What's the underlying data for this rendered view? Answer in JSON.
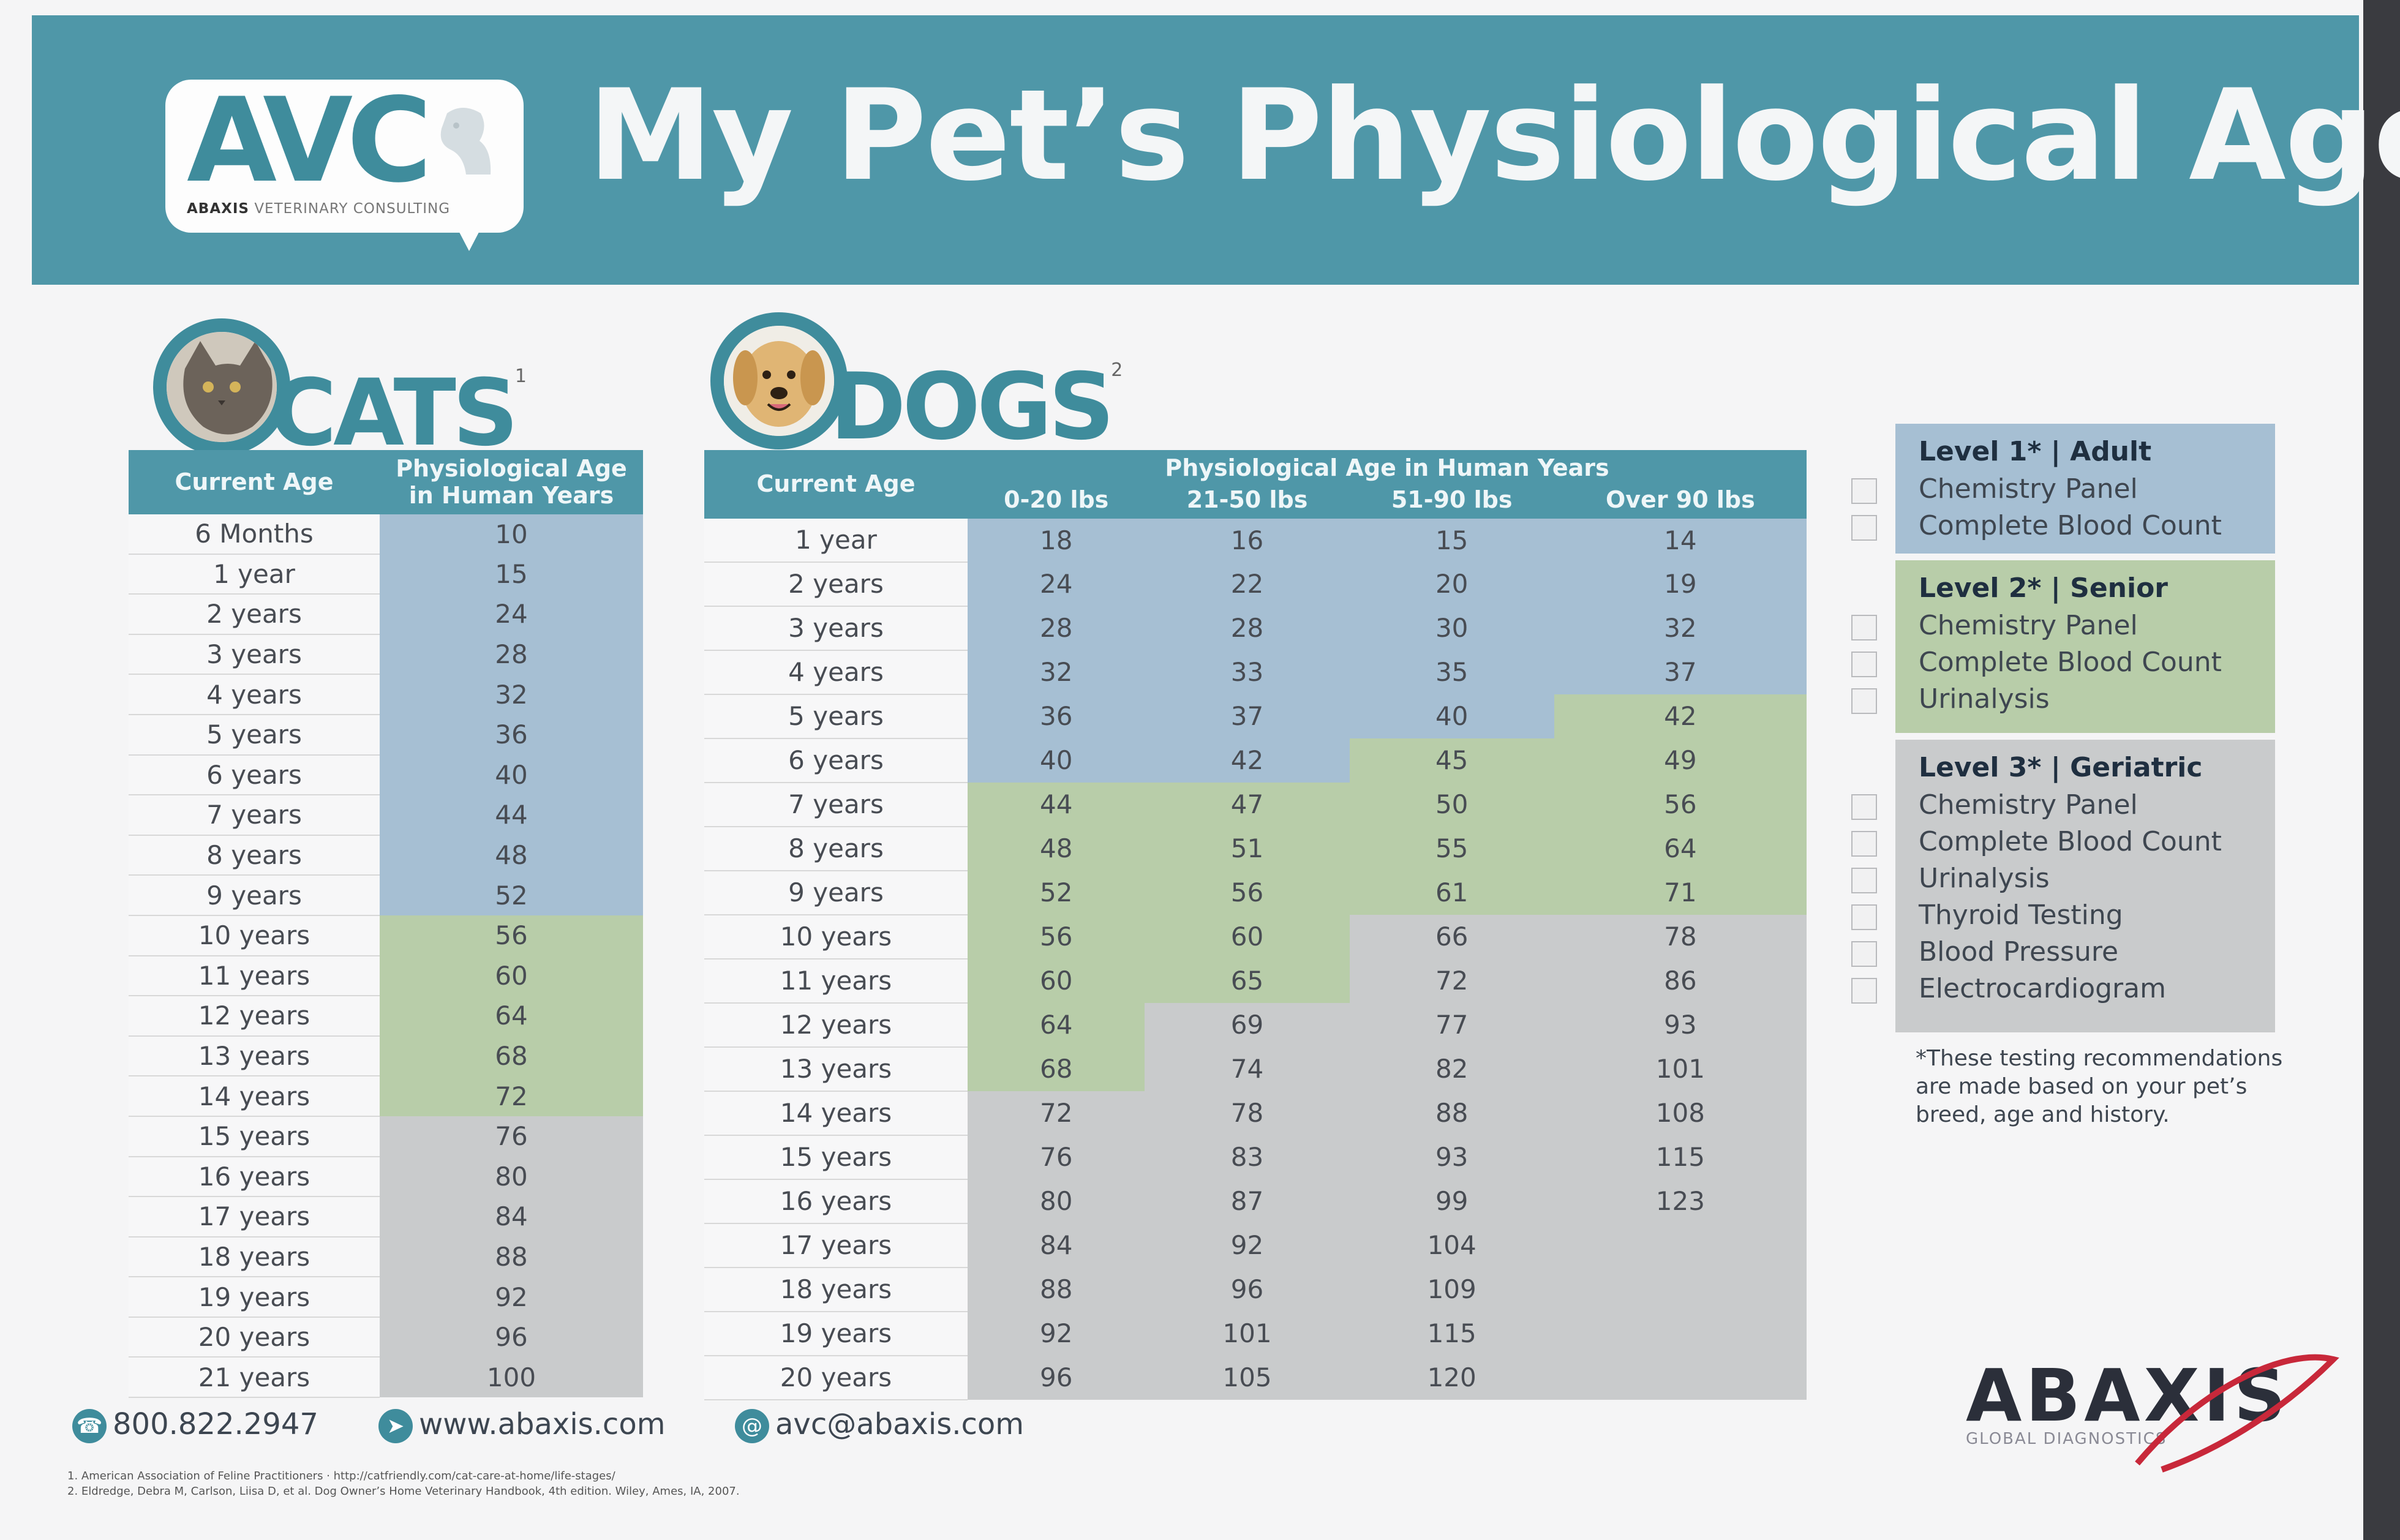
{
  "header": {
    "logo": "AVC",
    "logo_subtitle_brand": "ABAXIS",
    "logo_subtitle": "VETERINARY CONSULTING",
    "title": "My Pet’s Physiological Age"
  },
  "cats": {
    "heading": "CATS",
    "footnote_mark": "1",
    "col_age": "Current Age",
    "col_phys_line1": "Physiological Age",
    "col_phys_line2": "in Human Years",
    "rows": [
      {
        "age": "6 Months",
        "value": "10",
        "band": "blue"
      },
      {
        "age": "1 year",
        "value": "15",
        "band": "blue"
      },
      {
        "age": "2 years",
        "value": "24",
        "band": "blue"
      },
      {
        "age": "3 years",
        "value": "28",
        "band": "blue"
      },
      {
        "age": "4 years",
        "value": "32",
        "band": "blue"
      },
      {
        "age": "5 years",
        "value": "36",
        "band": "blue"
      },
      {
        "age": "6 years",
        "value": "40",
        "band": "blue"
      },
      {
        "age": "7 years",
        "value": "44",
        "band": "blue"
      },
      {
        "age": "8 years",
        "value": "48",
        "band": "blue"
      },
      {
        "age": "9 years",
        "value": "52",
        "band": "blue"
      },
      {
        "age": "10 years",
        "value": "56",
        "band": "green"
      },
      {
        "age": "11 years",
        "value": "60",
        "band": "green"
      },
      {
        "age": "12 years",
        "value": "64",
        "band": "green"
      },
      {
        "age": "13 years",
        "value": "68",
        "band": "green"
      },
      {
        "age": "14 years",
        "value": "72",
        "band": "green"
      },
      {
        "age": "15 years",
        "value": "76",
        "band": "gray"
      },
      {
        "age": "16 years",
        "value": "80",
        "band": "gray"
      },
      {
        "age": "17 years",
        "value": "84",
        "band": "gray"
      },
      {
        "age": "18 years",
        "value": "88",
        "band": "gray"
      },
      {
        "age": "19 years",
        "value": "92",
        "band": "gray"
      },
      {
        "age": "20 years",
        "value": "96",
        "band": "gray"
      },
      {
        "age": "21 years",
        "value": "100",
        "band": "gray"
      }
    ]
  },
  "dogs": {
    "heading": "DOGS",
    "footnote_mark": "2",
    "col_age": "Current Age",
    "group_header": "Physiological Age in Human Years",
    "weights": [
      "0-20 lbs",
      "21-50 lbs",
      "51-90 lbs",
      "Over 90 lbs"
    ],
    "rows": [
      {
        "age": "1 year",
        "v": [
          "18",
          "16",
          "15",
          "14"
        ],
        "b": [
          "blue",
          "blue",
          "blue",
          "blue"
        ]
      },
      {
        "age": "2 years",
        "v": [
          "24",
          "22",
          "20",
          "19"
        ],
        "b": [
          "blue",
          "blue",
          "blue",
          "blue"
        ]
      },
      {
        "age": "3 years",
        "v": [
          "28",
          "28",
          "30",
          "32"
        ],
        "b": [
          "blue",
          "blue",
          "blue",
          "blue"
        ]
      },
      {
        "age": "4 years",
        "v": [
          "32",
          "33",
          "35",
          "37"
        ],
        "b": [
          "blue",
          "blue",
          "blue",
          "blue"
        ]
      },
      {
        "age": "5 years",
        "v": [
          "36",
          "37",
          "40",
          "42"
        ],
        "b": [
          "blue",
          "blue",
          "blue",
          "green"
        ]
      },
      {
        "age": "6 years",
        "v": [
          "40",
          "42",
          "45",
          "49"
        ],
        "b": [
          "blue",
          "blue",
          "green",
          "green"
        ]
      },
      {
        "age": "7 years",
        "v": [
          "44",
          "47",
          "50",
          "56"
        ],
        "b": [
          "green",
          "green",
          "green",
          "green"
        ]
      },
      {
        "age": "8 years",
        "v": [
          "48",
          "51",
          "55",
          "64"
        ],
        "b": [
          "green",
          "green",
          "green",
          "green"
        ]
      },
      {
        "age": "9 years",
        "v": [
          "52",
          "56",
          "61",
          "71"
        ],
        "b": [
          "green",
          "green",
          "green",
          "green"
        ]
      },
      {
        "age": "10 years",
        "v": [
          "56",
          "60",
          "66",
          "78"
        ],
        "b": [
          "green",
          "green",
          "gray",
          "gray"
        ]
      },
      {
        "age": "11 years",
        "v": [
          "60",
          "65",
          "72",
          "86"
        ],
        "b": [
          "green",
          "green",
          "gray",
          "gray"
        ]
      },
      {
        "age": "12 years",
        "v": [
          "64",
          "69",
          "77",
          "93"
        ],
        "b": [
          "green",
          "gray",
          "gray",
          "gray"
        ]
      },
      {
        "age": "13 years",
        "v": [
          "68",
          "74",
          "82",
          "101"
        ],
        "b": [
          "green",
          "gray",
          "gray",
          "gray"
        ]
      },
      {
        "age": "14 years",
        "v": [
          "72",
          "78",
          "88",
          "108"
        ],
        "b": [
          "gray",
          "gray",
          "gray",
          "gray"
        ]
      },
      {
        "age": "15 years",
        "v": [
          "76",
          "83",
          "93",
          "115"
        ],
        "b": [
          "gray",
          "gray",
          "gray",
          "gray"
        ]
      },
      {
        "age": "16 years",
        "v": [
          "80",
          "87",
          "99",
          "123"
        ],
        "b": [
          "gray",
          "gray",
          "gray",
          "gray"
        ]
      },
      {
        "age": "17 years",
        "v": [
          "84",
          "92",
          "104",
          ""
        ],
        "b": [
          "gray",
          "gray",
          "gray",
          "gray"
        ]
      },
      {
        "age": "18 years",
        "v": [
          "88",
          "96",
          "109",
          ""
        ],
        "b": [
          "gray",
          "gray",
          "gray",
          "gray"
        ]
      },
      {
        "age": "19 years",
        "v": [
          "92",
          "101",
          "115",
          ""
        ],
        "b": [
          "gray",
          "gray",
          "gray",
          "gray"
        ]
      },
      {
        "age": "20 years",
        "v": [
          "96",
          "105",
          "120",
          ""
        ],
        "b": [
          "gray",
          "gray",
          "gray",
          "gray"
        ]
      }
    ]
  },
  "levels": [
    {
      "title": "Level 1* | Adult",
      "items": [
        "Chemistry Panel",
        "Complete Blood Count"
      ]
    },
    {
      "title": "Level 2* | Senior",
      "items": [
        "Chemistry Panel",
        "Complete Blood Count",
        "Urinalysis"
      ]
    },
    {
      "title": "Level 3* | Geriatric",
      "items": [
        "Chemistry Panel",
        "Complete Blood Count",
        "Urinalysis",
        "Thyroid Testing",
        "Blood Pressure",
        "Electrocardiogram"
      ]
    }
  ],
  "note": "*These testing recommendations are made based on your pet’s breed, age and history.",
  "footer": {
    "phone": "800.822.2947",
    "web": "www.abaxis.com",
    "email": "avc@abaxis.com",
    "ref1": "1. American Association of Feline Practitioners  ·  http://catfriendly.com/cat-care-at-home/life-stages/",
    "ref2": "2. Eldredge, Debra M, Carlson, Liisa D, et al. Dog Owner’s Home Veterinary Handbook, 4th edition. Wiley, Ames, IA, 2007.",
    "brand": "ABAXIS",
    "brand_sub": "GLOBAL DIAGNOSTICS"
  },
  "colors": {
    "teal": "#4f97a8",
    "blue_band": "#a6bfd3",
    "green_band": "#b8cda9",
    "gray_band": "#c9cbcc"
  }
}
